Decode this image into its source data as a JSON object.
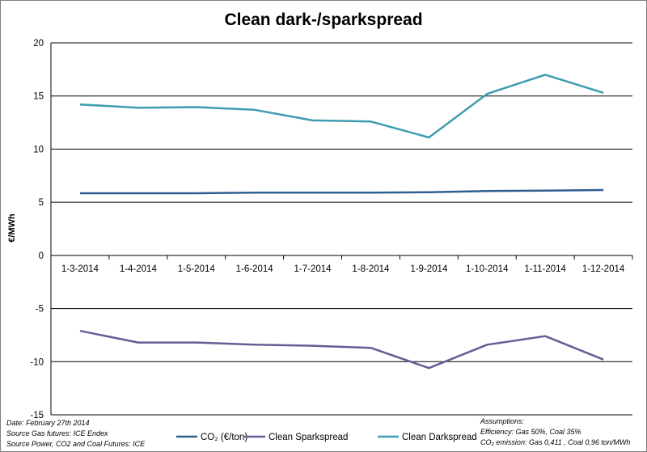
{
  "chart_data": {
    "type": "line",
    "title": "Clean dark-/sparkspread",
    "ylabel": "€/MWh",
    "xlabel": "",
    "ylim": [
      -15,
      20
    ],
    "yticks": [
      -15,
      -10,
      -5,
      0,
      5,
      10,
      15,
      20
    ],
    "grid": true,
    "x": [
      "1-3-2014",
      "1-4-2014",
      "1-5-2014",
      "1-6-2014",
      "1-7-2014",
      "1-8-2014",
      "1-9-2014",
      "1-10-2014",
      "1-11-2014",
      "1-12-2014"
    ],
    "series": [
      {
        "name": "CO₂ (€/ton)",
        "color": "#2e5f8f",
        "values": [
          5.85,
          5.85,
          5.85,
          5.9,
          5.9,
          5.9,
          5.95,
          6.05,
          6.1,
          6.15
        ]
      },
      {
        "name": "Clean Sparkspread",
        "color": "#6b5b95",
        "values": [
          -7.1,
          -8.2,
          -8.2,
          -8.4,
          -8.5,
          -8.7,
          -10.6,
          -8.4,
          -7.6,
          -9.8
        ]
      },
      {
        "name": "Clean Darkspread",
        "color": "#3e9cb0",
        "values": [
          14.2,
          13.9,
          13.95,
          13.7,
          12.7,
          12.6,
          11.1,
          15.2,
          17.0,
          15.3
        ]
      }
    ],
    "legend_position": "bottom"
  },
  "notes_left": [
    "Date: February 27th 2014",
    "Source Gas futures: ICE Endex",
    "Source Power, CO2 and Coal Futures: ICE"
  ],
  "notes_right": [
    "Assumptions:",
    "Efficiency: Gas 50%, Coal 35%",
    "CO₂ emission:  Gas 0,411 , Coal 0,96 ton/MWh"
  ]
}
